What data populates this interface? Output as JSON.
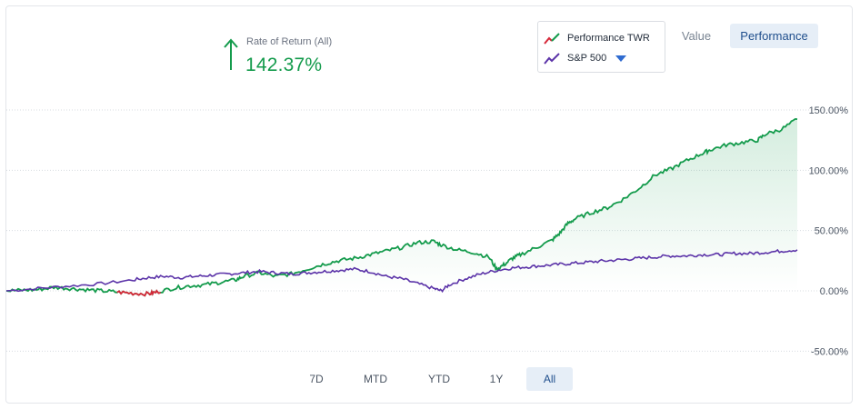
{
  "summary": {
    "label": "Rate of Return (All)",
    "value": "142.37%",
    "direction": "up",
    "color": "#149b4c"
  },
  "legend": {
    "items": [
      {
        "label": "Performance TWR",
        "icon": "trend-line-icon",
        "colors": [
          "#d62839",
          "#149b4c"
        ]
      },
      {
        "label": "S&P 500",
        "icon": "trend-line-icon",
        "colors": [
          "#5b33a8"
        ],
        "has_dropdown": true
      }
    ]
  },
  "view_toggle": {
    "options": [
      "Value",
      "Performance"
    ],
    "selected": "Performance"
  },
  "time_ranges": {
    "options": [
      "7D",
      "MTD",
      "YTD",
      "1Y",
      "All"
    ],
    "selected": "All"
  },
  "chart_data": {
    "type": "line",
    "y_ticks": [
      150,
      100,
      50,
      0,
      -50
    ],
    "y_tick_labels": [
      "150.00%",
      "100.00%",
      "50.00%",
      "0.00%",
      "-50.00%"
    ],
    "ylim": [
      -50,
      150
    ],
    "grid": true,
    "legend_position": "top-right",
    "series": [
      {
        "name": "Performance TWR",
        "color": "#149b4c",
        "negative_color": "#d62839",
        "fill": "area-gradient",
        "points": [
          [
            0,
            0
          ],
          [
            2,
            0.5
          ],
          [
            4,
            1
          ],
          [
            6,
            3
          ],
          [
            8,
            2
          ],
          [
            10,
            1
          ],
          [
            12,
            0
          ],
          [
            14,
            -1
          ],
          [
            16,
            -2
          ],
          [
            18,
            -2.5
          ],
          [
            19,
            -1
          ],
          [
            21,
            2
          ],
          [
            23,
            4
          ],
          [
            25,
            5
          ],
          [
            27,
            7
          ],
          [
            29,
            9
          ],
          [
            30,
            12
          ],
          [
            32,
            15
          ],
          [
            34,
            12
          ],
          [
            36,
            14
          ],
          [
            38,
            18
          ],
          [
            40,
            22
          ],
          [
            42,
            25
          ],
          [
            44,
            27
          ],
          [
            46,
            30
          ],
          [
            48,
            33
          ],
          [
            50,
            36
          ],
          [
            52,
            40
          ],
          [
            54,
            41
          ],
          [
            55,
            38
          ],
          [
            57,
            34
          ],
          [
            59,
            32
          ],
          [
            61,
            28
          ],
          [
            62,
            18
          ],
          [
            63,
            22
          ],
          [
            64,
            27
          ],
          [
            65,
            30
          ],
          [
            67,
            36
          ],
          [
            69,
            42
          ],
          [
            70,
            48
          ],
          [
            71,
            56
          ],
          [
            72,
            60
          ],
          [
            74,
            65
          ],
          [
            76,
            69
          ],
          [
            78,
            76
          ],
          [
            80,
            85
          ],
          [
            82,
            96
          ],
          [
            84,
            101
          ],
          [
            86,
            108
          ],
          [
            88,
            114
          ],
          [
            89,
            117
          ],
          [
            91,
            121
          ],
          [
            93,
            123
          ],
          [
            95,
            125
          ],
          [
            96,
            130
          ],
          [
            98,
            134
          ],
          [
            100,
            142.37
          ]
        ]
      },
      {
        "name": "S&P 500",
        "color": "#5b33a8",
        "points": [
          [
            0,
            0
          ],
          [
            4,
            2
          ],
          [
            8,
            4
          ],
          [
            12,
            6
          ],
          [
            16,
            9
          ],
          [
            18,
            11
          ],
          [
            20,
            12
          ],
          [
            22,
            11
          ],
          [
            24,
            12
          ],
          [
            26,
            13
          ],
          [
            28,
            14
          ],
          [
            30,
            15
          ],
          [
            32,
            16
          ],
          [
            34,
            15
          ],
          [
            36,
            14
          ],
          [
            38,
            15
          ],
          [
            40,
            16
          ],
          [
            42,
            17
          ],
          [
            44,
            18
          ],
          [
            46,
            16
          ],
          [
            48,
            12
          ],
          [
            50,
            10
          ],
          [
            52,
            6
          ],
          [
            54,
            2
          ],
          [
            55,
            0
          ],
          [
            56,
            5
          ],
          [
            58,
            10
          ],
          [
            60,
            14
          ],
          [
            62,
            17
          ],
          [
            64,
            19
          ],
          [
            66,
            20
          ],
          [
            68,
            21
          ],
          [
            70,
            22
          ],
          [
            72,
            23
          ],
          [
            74,
            24
          ],
          [
            76,
            25
          ],
          [
            78,
            26
          ],
          [
            80,
            27
          ],
          [
            82,
            28
          ],
          [
            84,
            29
          ],
          [
            86,
            29
          ],
          [
            88,
            30
          ],
          [
            90,
            30
          ],
          [
            92,
            31
          ],
          [
            94,
            31
          ],
          [
            96,
            32
          ],
          [
            98,
            33
          ],
          [
            100,
            34
          ]
        ]
      }
    ]
  }
}
